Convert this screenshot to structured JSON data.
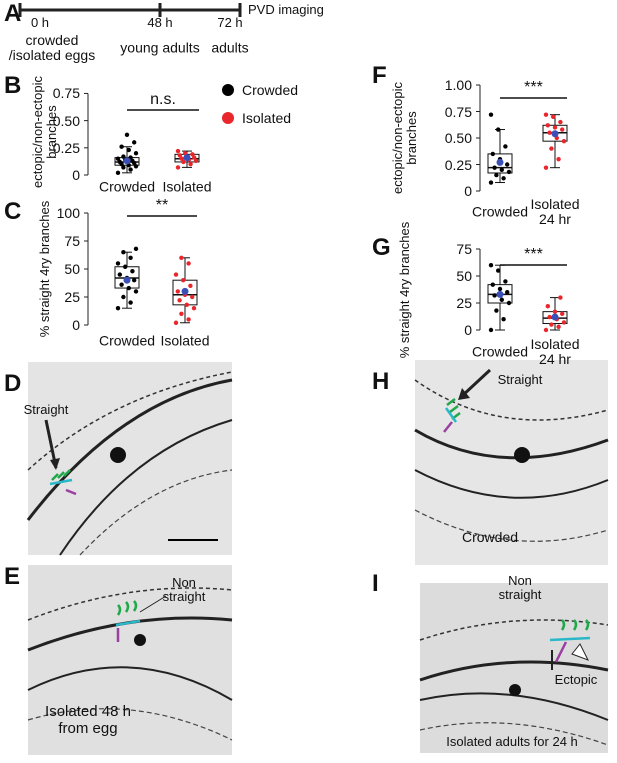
{
  "timeline": {
    "panel": "A",
    "points": [
      {
        "time": "0 h",
        "label": "crowded /isolated eggs"
      },
      {
        "time": "48 h",
        "label": "young adults"
      },
      {
        "time": "72 h",
        "label": "adults"
      }
    ],
    "end_label": "PVD imaging"
  },
  "chart_data": [
    {
      "type": "box",
      "panel": "B",
      "ylabel": "ectopic/non-ectopic branches",
      "annotation": "n.s.",
      "categories": [
        "Crowded",
        "Isolated"
      ],
      "ylim": [
        0,
        0.8
      ],
      "yticks": [
        0,
        0.25,
        {
          "value": 0.5,
          "label": "0.50"
        },
        0.75
      ],
      "mean_color": "#3a4fb8",
      "legend": [
        {
          "name": "Crowded",
          "color": "#000000"
        },
        {
          "name": "Isolated",
          "color": "#e8262b"
        }
      ],
      "boxes": [
        {
          "color": "#000000",
          "min": 0.02,
          "q1": 0.09,
          "median": 0.12,
          "q3": 0.16,
          "max": 0.26,
          "mean": 0.13,
          "points": [
            0.02,
            0.05,
            0.07,
            0.08,
            0.09,
            0.1,
            0.11,
            0.12,
            0.12,
            0.13,
            0.14,
            0.15,
            0.16,
            0.17,
            0.2,
            0.23,
            0.26,
            0.3,
            0.37
          ]
        },
        {
          "color": "#e8262b",
          "min": 0.07,
          "q1": 0.12,
          "median": 0.15,
          "q3": 0.19,
          "max": 0.22,
          "mean": 0.16,
          "points": [
            0.07,
            0.1,
            0.12,
            0.13,
            0.14,
            0.15,
            0.16,
            0.17,
            0.18,
            0.19,
            0.2,
            0.22
          ]
        }
      ]
    },
    {
      "type": "box",
      "panel": "C",
      "ylabel": "% straight 4ry branches",
      "annotation": "**",
      "categories": [
        "Crowded",
        "Isolated"
      ],
      "ylim": [
        0,
        100
      ],
      "yticks": [
        0,
        25,
        50,
        75,
        100
      ],
      "mean_color": "#3a4fb8",
      "boxes": [
        {
          "color": "#000000",
          "min": 15,
          "q1": 33,
          "median": 42,
          "q3": 52,
          "max": 65,
          "mean": 40,
          "points": [
            15,
            20,
            25,
            30,
            33,
            36,
            40,
            42,
            45,
            48,
            52,
            55,
            60,
            65,
            68
          ]
        },
        {
          "color": "#e8262b",
          "min": 2,
          "q1": 18,
          "median": 27,
          "q3": 40,
          "max": 60,
          "mean": 30,
          "points": [
            2,
            5,
            10,
            15,
            18,
            22,
            25,
            27,
            30,
            35,
            40,
            45,
            55,
            60
          ]
        }
      ]
    },
    {
      "type": "box",
      "panel": "F",
      "ylabel": "ectopic/non-ectopic branches",
      "annotation": "***",
      "categories": [
        "Crowded",
        "Isolated 24 hr"
      ],
      "ylim": [
        0,
        1
      ],
      "yticks": [
        0,
        0.25,
        {
          "value": 0.5,
          "label": "0.50"
        },
        0.75,
        {
          "value": 1,
          "label": "1.00"
        }
      ],
      "mean_color": "#3a4fb8",
      "boxes": [
        {
          "color": "#000000",
          "min": 0.08,
          "q1": 0.17,
          "median": 0.22,
          "q3": 0.35,
          "max": 0.58,
          "mean": 0.27,
          "points": [
            0.08,
            0.12,
            0.15,
            0.18,
            0.2,
            0.22,
            0.25,
            0.3,
            0.35,
            0.42,
            0.58,
            0.72
          ]
        },
        {
          "color": "#e8262b",
          "min": 0.22,
          "q1": 0.47,
          "median": 0.55,
          "q3": 0.62,
          "max": 0.72,
          "mean": 0.54,
          "points": [
            0.22,
            0.3,
            0.4,
            0.47,
            0.5,
            0.55,
            0.58,
            0.6,
            0.62,
            0.65,
            0.7,
            0.72
          ]
        }
      ]
    },
    {
      "type": "box",
      "panel": "G",
      "ylabel": "% straight 4ry branches",
      "annotation": "***",
      "categories": [
        "Crowded",
        "Isolated 24 hr"
      ],
      "ylim": [
        0,
        75
      ],
      "yticks": [
        0,
        25,
        50,
        75
      ],
      "mean_color": "#3a4fb8",
      "boxes": [
        {
          "color": "#000000",
          "min": 0,
          "q1": 25,
          "median": 33,
          "q3": 42,
          "max": 60,
          "mean": 33,
          "points": [
            0,
            10,
            18,
            25,
            28,
            32,
            35,
            38,
            42,
            45,
            55,
            60
          ]
        },
        {
          "color": "#e8262b",
          "min": 0,
          "q1": 6,
          "median": 11,
          "q3": 17,
          "max": 30,
          "mean": 12,
          "points": [
            0,
            3,
            5,
            7,
            10,
            12,
            15,
            17,
            22,
            30
          ]
        }
      ]
    }
  ],
  "images": [
    {
      "panel": "D",
      "labels": [
        "Straight"
      ]
    },
    {
      "panel": "E",
      "labels": [
        "Non straight",
        "Isolated 48 h from egg"
      ]
    },
    {
      "panel": "H",
      "labels": [
        "Straight",
        "Crowded"
      ]
    },
    {
      "panel": "I",
      "labels": [
        "Non straight",
        "Ectopic",
        "Isolated adults for 24 h"
      ]
    }
  ]
}
